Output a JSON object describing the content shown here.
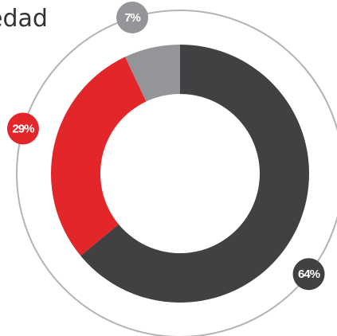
{
  "chart_data": {
    "type": "donut",
    "title": "edad",
    "categories": [
      null,
      null,
      null
    ],
    "values": [
      64,
      29,
      7
    ],
    "value_labels": [
      "64%",
      "29%",
      "7%"
    ],
    "colors": [
      "#414042",
      "#e3262a",
      "#939598"
    ]
  }
}
